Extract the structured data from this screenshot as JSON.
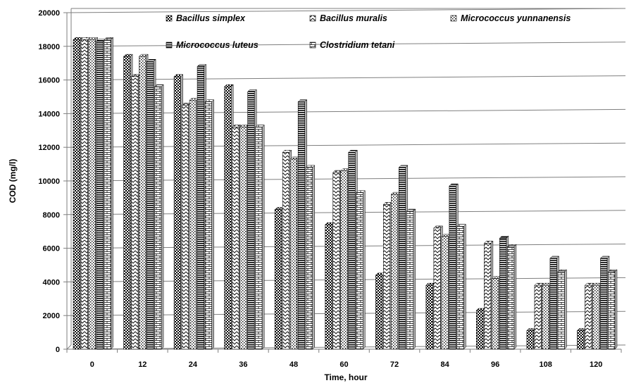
{
  "chart_data": {
    "type": "bar",
    "title": "",
    "xlabel": "Time, hour",
    "ylabel": "COD (mg/l)",
    "ylim": [
      0,
      20000
    ],
    "y_ticks": [
      0,
      2000,
      4000,
      6000,
      8000,
      10000,
      12000,
      14000,
      16000,
      18000,
      20000
    ],
    "grid": true,
    "legend_position": "top-inside",
    "categories": [
      "0",
      "12",
      "24",
      "36",
      "48",
      "60",
      "72",
      "84",
      "96",
      "108",
      "120"
    ],
    "series": [
      {
        "name": "Bacillus simplex",
        "pattern": "checker",
        "values": [
          18400,
          17400,
          16200,
          15600,
          8300,
          7400,
          4400,
          3800,
          2300,
          1100,
          1100
        ]
      },
      {
        "name": "Bacillus muralis",
        "pattern": "zigzag",
        "values": [
          18400,
          16200,
          14500,
          13200,
          11700,
          10500,
          8600,
          7200,
          6300,
          3800,
          3800
        ]
      },
      {
        "name": "Micrococcus yunnanensis",
        "pattern": "dots",
        "values": [
          18400,
          17400,
          14800,
          13200,
          11300,
          10600,
          9200,
          6700,
          4200,
          3800,
          3800
        ]
      },
      {
        "name": "Micrococcus luteus",
        "pattern": "hlines",
        "values": [
          18300,
          17100,
          16800,
          15300,
          14700,
          11700,
          10800,
          9700,
          6600,
          5400,
          5400
        ]
      },
      {
        "name": "Clostridium tetani",
        "pattern": "brick",
        "values": [
          18400,
          15600,
          14700,
          13200,
          10800,
          9300,
          8200,
          7300,
          6100,
          4600,
          4600
        ]
      }
    ]
  }
}
